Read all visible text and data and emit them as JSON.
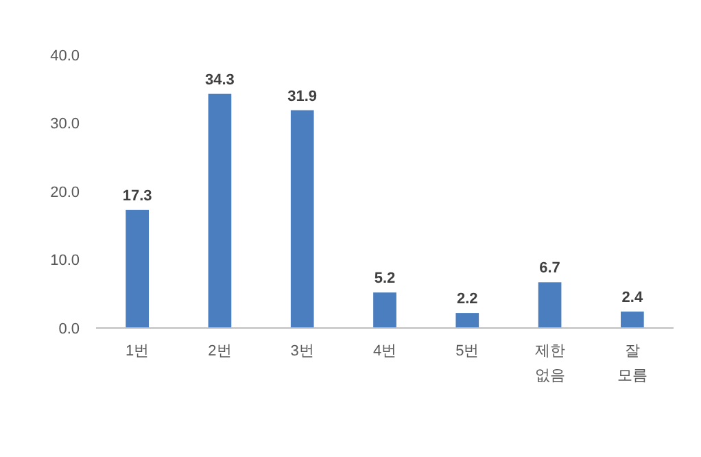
{
  "chart_data": {
    "type": "bar",
    "categories": [
      "1번",
      "2번",
      "3번",
      "4번",
      "5번",
      "제한 없음",
      "잘 모름"
    ],
    "values": [
      17.3,
      34.3,
      31.9,
      5.2,
      2.2,
      6.7,
      2.4
    ],
    "color": "#4a7ebf",
    "ylim": [
      0,
      40
    ],
    "yticks": [
      {
        "value": 0,
        "label": "0.0"
      },
      {
        "value": 10,
        "label": "10.0"
      },
      {
        "value": 20,
        "label": "20.0"
      },
      {
        "value": 30,
        "label": "30.0"
      },
      {
        "value": 40,
        "label": "40.0"
      }
    ],
    "data_labels": true,
    "grid": false
  }
}
